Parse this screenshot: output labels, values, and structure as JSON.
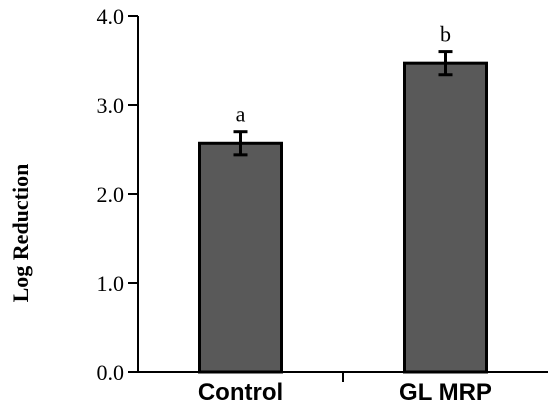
{
  "chart_data": {
    "type": "bar",
    "categories": [
      "Control",
      "GL MRP"
    ],
    "values": [
      2.57,
      3.47
    ],
    "errors": [
      0.13,
      0.13
    ],
    "annotations": [
      "a",
      "b"
    ],
    "ylabel": "Log Reduction",
    "xlabel": "",
    "ylim": [
      0,
      4
    ],
    "yticks": [
      "0.0",
      "1.0",
      "2.0",
      "3.0",
      "4.0"
    ],
    "grid": false,
    "bar_color": "#595959",
    "bar_edge_color": "#000000"
  }
}
